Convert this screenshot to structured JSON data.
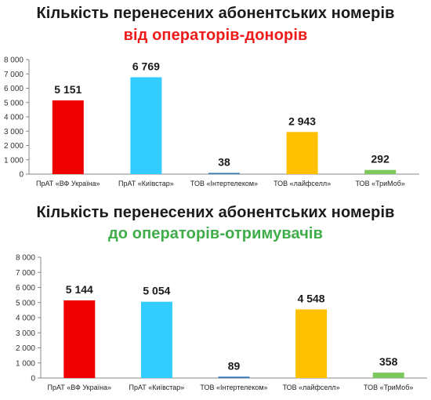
{
  "chart_data": [
    {
      "type": "bar",
      "title": "Кількість  перенесених абонентських номерів",
      "subtitle": "від операторів-донорів",
      "title_color": "#1a1a1a",
      "subtitle_color": "#ee1b1b",
      "categories": [
        "ПрАТ «ВФ Україна»",
        "ПрАТ «Київстар»",
        "ТОВ «Інтертелеком»",
        "ТОВ «лайфселл»",
        "ТОВ «ТриМоб»"
      ],
      "values": [
        5151,
        6769,
        38,
        2943,
        292
      ],
      "value_labels": [
        "5 151",
        "6 769",
        "38",
        "2 943",
        "292"
      ],
      "colors": [
        "#ee0000",
        "#33ccff",
        "#2e75b6",
        "#ffc000",
        "#7cc85a"
      ],
      "ylim": [
        0,
        8000
      ],
      "yticks": [
        0,
        1000,
        2000,
        3000,
        4000,
        5000,
        6000,
        7000,
        8000
      ],
      "ytick_labels": [
        "0",
        "1 000",
        "2 000",
        "3 000",
        "4 000",
        "5 000",
        "6 000",
        "7 000",
        "8 000"
      ],
      "grid": false,
      "xlabel": "",
      "ylabel": ""
    },
    {
      "type": "bar",
      "title": "Кількість  перенесених абонентських номерів",
      "subtitle": "до операторів-отримувачів",
      "title_color": "#1a1a1a",
      "subtitle_color": "#3fae49",
      "categories": [
        "ПрАТ «ВФ Україна»",
        "ПрАТ «Київстар»",
        "ТОВ «Інтертелеком»",
        "ТОВ «лайфселл»",
        "ТОВ «ТриМоб»"
      ],
      "values": [
        5144,
        5054,
        89,
        4548,
        358
      ],
      "value_labels": [
        "5 144",
        "5 054",
        "89",
        "4 548",
        "358"
      ],
      "colors": [
        "#ee0000",
        "#33ccff",
        "#2e75b6",
        "#ffc000",
        "#7cc85a"
      ],
      "ylim": [
        0,
        8000
      ],
      "yticks": [
        0,
        1000,
        2000,
        3000,
        4000,
        5000,
        6000,
        7000,
        8000
      ],
      "ytick_labels": [
        "0",
        "1 000",
        "2 000",
        "3 000",
        "4 000",
        "5 000",
        "6 000",
        "7 000",
        "8 000"
      ],
      "grid": false,
      "xlabel": "",
      "ylabel": ""
    }
  ]
}
